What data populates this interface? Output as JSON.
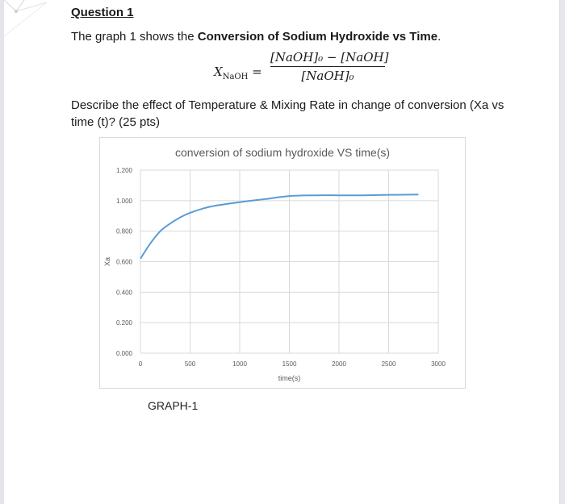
{
  "question": {
    "title": "Question 1",
    "intro_prefix": "The graph 1 shows the ",
    "intro_bold": "Conversion of Sodium Hydroxide vs Time",
    "intro_suffix": ".",
    "formula": {
      "lhs": "X",
      "lhs_sub": "NaOH",
      "equals": "=",
      "numerator": "[NaOH]₀ − [NaOH]",
      "denominator": "[NaOH]₀"
    },
    "prompt": "Describe the effect of Temperature & Mixing Rate in change of conversion (Xa vs time (t)? (25 pts)"
  },
  "graph_caption": "GRAPH-1",
  "colors": {
    "line": "#5b9bd5",
    "grid": "#d9d9d9",
    "axis_text": "#595959"
  },
  "chart_data": {
    "type": "line",
    "title": "conversion of sodium hydroxide VS time(s)",
    "xlabel": "time(s)",
    "ylabel": "Xa",
    "xlim": [
      0,
      3000
    ],
    "ylim": [
      0,
      1.2
    ],
    "x_ticks": [
      "0",
      "500",
      "1000",
      "1500",
      "2000",
      "2500",
      "3000"
    ],
    "y_ticks": [
      "0.000",
      "0.200",
      "0.400",
      "0.600",
      "0.800",
      "1.000",
      "1.200"
    ],
    "grid": true,
    "legend": "none",
    "series": [
      {
        "name": "Xa",
        "x": [
          0,
          100,
          200,
          300,
          400,
          500,
          700,
          1000,
          1250,
          1500,
          1750,
          2000,
          2250,
          2500,
          2800
        ],
        "values": [
          0.62,
          0.72,
          0.8,
          0.85,
          0.89,
          0.92,
          0.96,
          0.99,
          1.01,
          1.03,
          1.035,
          1.035,
          1.035,
          1.038,
          1.04
        ]
      }
    ]
  }
}
